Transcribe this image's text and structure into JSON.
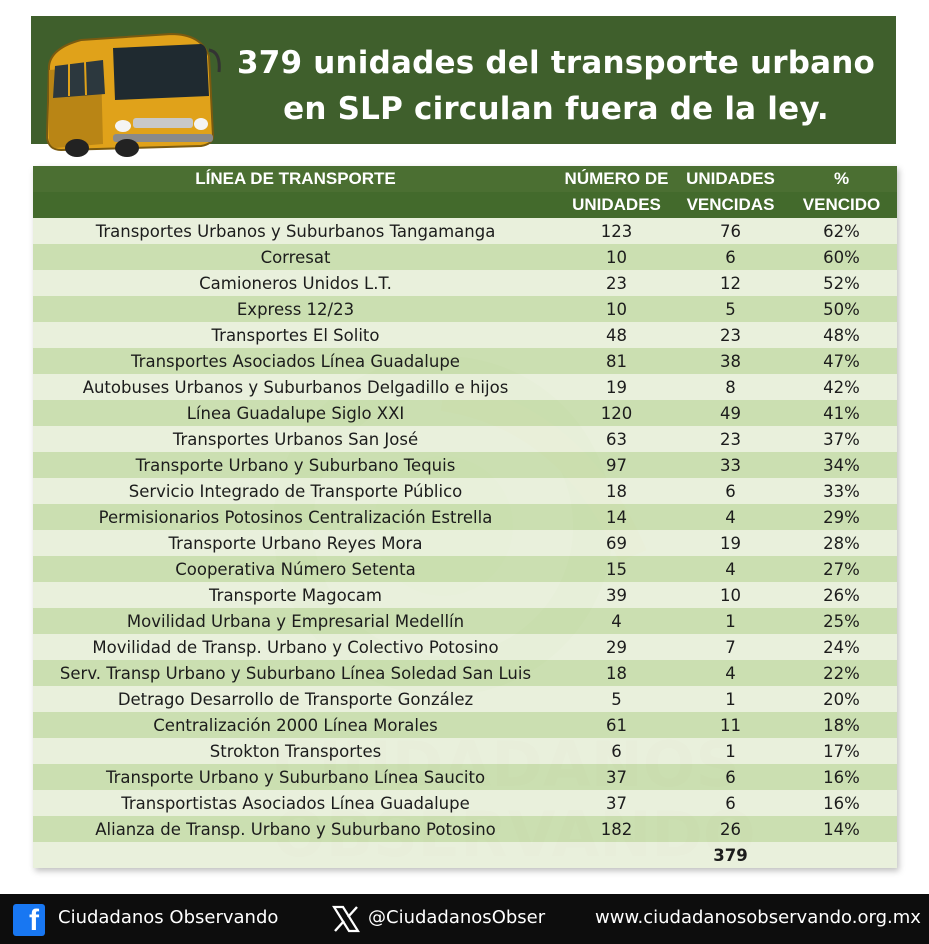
{
  "banner": {
    "title_line1": "379 unidades del transporte urbano",
    "title_line2": "en SLP circulan fuera de la ley."
  },
  "table": {
    "headers_row1": [
      "LÍNEA DE TRANSPORTE",
      "NÚMERO DE",
      "UNIDADES",
      "%"
    ],
    "headers_row2": [
      "",
      "UNIDADES",
      "VENCIDAS",
      "VENCIDO"
    ],
    "rows": [
      [
        "Transportes Urbanos y Suburbanos Tangamanga",
        "123",
        "76",
        "62%"
      ],
      [
        "Corresat",
        "10",
        "6",
        "60%"
      ],
      [
        "Camioneros Unidos L.T.",
        "23",
        "12",
        "52%"
      ],
      [
        "Express 12/23",
        "10",
        "5",
        "50%"
      ],
      [
        "Transportes El Solito",
        "48",
        "23",
        "48%"
      ],
      [
        "Transportes Asociados Línea Guadalupe",
        "81",
        "38",
        "47%"
      ],
      [
        "Autobuses Urbanos y Suburbanos Delgadillo e hijos",
        "19",
        "8",
        "42%"
      ],
      [
        "Línea Guadalupe Siglo XXI",
        "120",
        "49",
        "41%"
      ],
      [
        "Transportes Urbanos San José",
        "63",
        "23",
        "37%"
      ],
      [
        "Transporte Urbano y Suburbano Tequis",
        "97",
        "33",
        "34%"
      ],
      [
        "Servicio Integrado de Transporte Público",
        "18",
        "6",
        "33%"
      ],
      [
        "Permisionarios Potosinos Centralización Estrella",
        "14",
        "4",
        "29%"
      ],
      [
        "Transporte Urbano Reyes Mora",
        "69",
        "19",
        "28%"
      ],
      [
        "Cooperativa Número Setenta",
        "15",
        "4",
        "27%"
      ],
      [
        "Transporte Magocam",
        "39",
        "10",
        "26%"
      ],
      [
        "Movilidad Urbana y Empresarial Medellín",
        "4",
        "1",
        "25%"
      ],
      [
        "Movilidad de Transp. Urbano y Colectivo Potosino",
        "29",
        "7",
        "24%"
      ],
      [
        "Serv. Transp Urbano y Suburbano Línea Soledad San Luis",
        "18",
        "4",
        "22%"
      ],
      [
        "Detrago Desarrollo de Transporte González",
        "5",
        "1",
        "20%"
      ],
      [
        "Centralización 2000 Línea Morales",
        "61",
        "11",
        "18%"
      ],
      [
        "Strokton Transportes",
        "6",
        "1",
        "17%"
      ],
      [
        "Transporte Urbano y Suburbano Línea Saucito",
        "37",
        "6",
        "16%"
      ],
      [
        "Transportistas Asociados Línea Guadalupe",
        "37",
        "6",
        "16%"
      ],
      [
        "Alianza de Transp. Urbano y Suburbano Potosino",
        "182",
        "26",
        "14%"
      ]
    ],
    "total": "379"
  },
  "watermark": {
    "line1": "CIUDADANOS",
    "line2": "OBSERVANDO"
  },
  "footer": {
    "facebook_icon": "facebook-icon",
    "facebook_label": "Ciudadanos Observando",
    "x_icon": "x-logo-icon",
    "x_label": "@CiudadanosObser",
    "website": "www.ciudadanosobservando.org.mx"
  },
  "colors": {
    "banner_green": "#3f5f2c",
    "header_green": "#4b6f32",
    "row_light": "#e7efd9",
    "row_dark": "#c7dcaa",
    "footer_bg": "#0d0d0d",
    "facebook_blue": "#1877f2",
    "bus_yellow": "#e0a21a"
  }
}
